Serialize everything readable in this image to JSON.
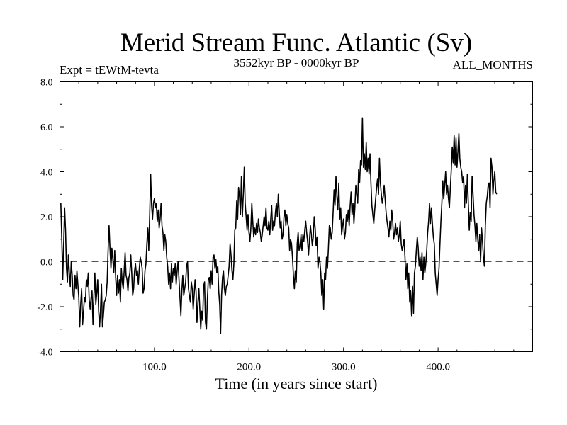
{
  "chart_data": {
    "type": "line",
    "title": "Merid Stream Func. Atlantic (Sv)",
    "subtitle_left": "Expt = tEWtM-tevta",
    "subtitle_center": "3552kyr BP - 0000kyr BP",
    "subtitle_right": "ALL_MONTHS",
    "xlabel": "Time (in years since start)",
    "ylabel": "",
    "xlim": [
      0,
      500
    ],
    "ylim": [
      -4.0,
      8.0
    ],
    "x_ticks": [
      100,
      200,
      300,
      400
    ],
    "x_tick_labels": [
      "100.0",
      "200.0",
      "300.0",
      "400.0"
    ],
    "y_ticks": [
      -4,
      -2,
      0,
      2,
      4,
      6,
      8
    ],
    "y_tick_labels": [
      "-4.0",
      "-2.0",
      "0.0",
      "2.0",
      "4.0",
      "6.0",
      "8.0"
    ],
    "reference_line": 0.0,
    "series": [
      {
        "name": "Atlantic meridional stream function",
        "color": "#000000",
        "x_start": 1,
        "x_step": 1,
        "values": [
          2.6,
          1.0,
          -0.8,
          0.8,
          2.4,
          1.4,
          -0.3,
          -0.9,
          0.3,
          -0.5,
          -1.1,
          0.0,
          -0.6,
          -1.5,
          -1.7,
          -0.6,
          -1.2,
          -0.4,
          -1.0,
          -1.6,
          -2.9,
          -1.9,
          -1.2,
          -2.8,
          -2.2,
          -1.6,
          -1.8,
          -0.8,
          -1.1,
          -0.5,
          -1.7,
          -2.1,
          -1.6,
          -1.3,
          -2.8,
          -1.5,
          -0.5,
          -1.9,
          -1.4,
          -0.8,
          -2.2,
          -2.9,
          -2.1,
          -1.0,
          -2.9,
          -2.4,
          -1.8,
          -1.7,
          -1.5,
          -0.9,
          0.5,
          1.6,
          0.6,
          -0.3,
          0.6,
          0.1,
          -0.5,
          0.5,
          -0.7,
          -1.5,
          -0.6,
          -1.4,
          -0.8,
          -1.8,
          -0.3,
          -0.9,
          -1.2,
          -0.4,
          0.4,
          -0.6,
          -0.8,
          -1.3,
          -0.7,
          -0.5,
          0.3,
          -0.5,
          -1.5,
          -1.2,
          -0.4,
          -0.1,
          -0.6,
          -0.4,
          -1.0,
          -0.3,
          0.2,
          0.0,
          -0.3,
          -1.4,
          -1.2,
          -0.4,
          -0.1,
          0.8,
          1.5,
          0.5,
          2.1,
          3.9,
          2.5,
          1.9,
          2.6,
          2.8,
          2.4,
          2.6,
          1.8,
          2.3,
          1.5,
          1.9,
          2.6,
          1.6,
          1.3,
          0.5,
          1.2,
          0.9,
          0.2,
          -0.2,
          -1.0,
          -0.5,
          -1.2,
          -0.1,
          -0.9,
          -0.3,
          -0.6,
          -0.1,
          -1.0,
          -0.4,
          0.0,
          -0.8,
          -1.6,
          -2.4,
          -1.3,
          -0.6,
          -1.5,
          -1.2,
          -0.9,
          -0.2,
          0.0,
          -1.2,
          -1.5,
          -1.8,
          -0.9,
          -1.2,
          -2.1,
          -1.5,
          -0.8,
          -1.3,
          -2.7,
          -1.8,
          -1.2,
          -2.1,
          -3.0,
          -2.2,
          -2.6,
          -1.1,
          -0.9,
          -2.7,
          -3.0,
          -1.7,
          -0.8,
          -0.7,
          -1.2,
          -0.4,
          -1.0,
          0.2,
          0.3,
          -0.3,
          0.1,
          -0.5,
          -0.2,
          -1.3,
          -1.9,
          -3.2,
          -1.5,
          -0.7,
          -0.4,
          -1.2,
          -1.5,
          -1.1,
          -1.0,
          -0.6,
          -0.2,
          0.8,
          0.3,
          -0.4,
          -0.8,
          -0.1,
          1.4,
          1.5,
          2.7,
          1.9,
          3.3,
          2.9,
          2.1,
          3.8,
          2.0,
          3.0,
          4.2,
          2.6,
          2.0,
          1.4,
          2.1,
          1.3,
          0.9,
          1.5,
          2.6,
          1.8,
          1.1,
          1.5,
          1.2,
          1.7,
          1.3,
          1.9,
          1.5,
          1.3,
          0.9,
          1.2,
          1.6,
          2.0,
          1.6,
          2.4,
          1.5,
          1.4,
          1.8,
          1.2,
          1.9,
          2.5,
          1.4,
          1.8,
          1.6,
          2.2,
          2.6,
          2.0,
          3.0,
          2.2,
          1.5,
          1.8,
          1.0,
          1.2,
          2.0,
          2.3,
          1.6,
          2.1,
          1.7,
          1.5,
          0.5,
          1.0,
          0.8,
          0.2,
          -0.6,
          -1.2,
          -0.4,
          -0.9,
          0.8,
          1.3,
          0.5,
          0.7,
          1.2,
          0.5,
          1.2,
          0.9,
          1.4,
          1.8,
          1.3,
          0.9,
          0.3,
          1.0,
          1.6,
          1.2,
          0.7,
          1.1,
          2.0,
          1.5,
          0.7,
          1.1,
          -0.3,
          0.2,
          0.0,
          -0.5,
          -1.5,
          -0.8,
          -2.1,
          -0.5,
          -0.8,
          0.2,
          -0.3,
          0.6,
          1.6,
          1.5,
          1.0,
          1.3,
          2.2,
          3.2,
          2.5,
          3.8,
          2.9,
          2.3,
          3.5,
          1.9,
          2.4,
          1.2,
          1.6,
          1.9,
          1.0,
          1.3,
          2.1,
          1.8,
          2.3,
          1.6,
          2.5,
          3.1,
          2.1,
          2.6,
          1.7,
          2.4,
          3.4,
          3.0,
          2.6,
          4.1,
          3.5,
          4.5,
          4.3,
          6.4,
          4.2,
          4.8,
          4.1,
          5.3,
          4.0,
          4.6,
          3.9,
          4.8,
          3.5,
          2.5,
          2.1,
          1.7,
          2.3,
          2.8,
          3.3,
          3.7,
          3.0,
          4.6,
          3.5,
          3.0,
          2.6,
          2.9,
          3.4,
          2.8,
          2.2,
          1.8,
          1.5,
          1.1,
          1.8,
          1.4,
          2.3,
          1.8,
          1.0,
          1.3,
          1.7,
          1.2,
          1.5,
          0.9,
          1.2,
          1.8,
          0.8,
          0.5,
          0.7,
          1.0,
          0.2,
          -0.8,
          -0.1,
          -1.2,
          -0.5,
          -1.8,
          -1.3,
          -2.4,
          -1.1,
          -2.3,
          -0.5,
          -0.2,
          0.5,
          1.1,
          0.6,
          -0.2,
          0.2,
          -0.4,
          0.4,
          -0.8,
          0.2,
          -0.5,
          -0.1,
          0.5,
          1.3,
          1.8,
          2.6,
          1.7,
          2.4,
          1.7,
          1.1,
          0.8,
          -0.5,
          -1.0,
          -1.5,
          -0.8,
          -0.3,
          0.8,
          1.8,
          2.6,
          3.6,
          2.8,
          3.4,
          4.0,
          3.0,
          3.4,
          2.8,
          2.4,
          3.3,
          4.1,
          5.1,
          4.4,
          5.6,
          4.3,
          5.5,
          4.2,
          4.9,
          5.7,
          4.6,
          4.2,
          4.0,
          3.5,
          3.8,
          2.4,
          3.4,
          2.6,
          3.9,
          2.6,
          1.4,
          2.2,
          1.8,
          3.8,
          3.0,
          2.1,
          1.6,
          0.9,
          1.7,
          1.0,
          0.5,
          1.2,
          0.0,
          1.5,
          0.9,
          0.2,
          -0.2,
          1.6,
          2.6,
          2.9,
          3.4,
          3.5,
          2.4,
          4.6,
          4.2,
          3.0,
          3.6,
          4.0,
          3.1,
          3.0
        ]
      }
    ]
  }
}
